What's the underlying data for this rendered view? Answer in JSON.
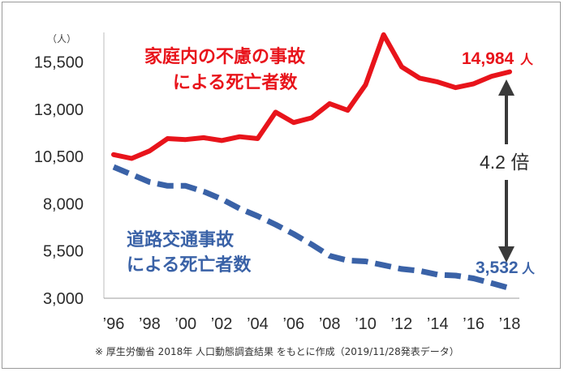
{
  "chart_data": {
    "type": "line",
    "unit_label": "（人）",
    "x": [
      "96",
      "97",
      "98",
      "99",
      "00",
      "01",
      "02",
      "03",
      "04",
      "05",
      "06",
      "07",
      "08",
      "09",
      "10",
      "11",
      "12",
      "13",
      "14",
      "15",
      "16",
      "17",
      "18"
    ],
    "x_tick_labels": [
      "’96",
      "’98",
      "’00",
      "’02",
      "’04",
      "’06",
      "’08",
      "’10",
      "’12",
      "’14",
      "’16",
      "’18"
    ],
    "y_ticks": [
      "3,000",
      "5,500",
      "8,000",
      "10,500",
      "13,000",
      "15,500"
    ],
    "ylim": [
      3000,
      17500
    ],
    "grid": false,
    "series": [
      {
        "name": "家庭内の不慮の事故による死亡者数",
        "color": "#e8141b",
        "dash": false,
        "values": [
          10600,
          10400,
          10800,
          11450,
          11400,
          11500,
          11350,
          11550,
          11450,
          12850,
          12300,
          12550,
          13300,
          12950,
          14300,
          16950,
          15250,
          14650,
          14450,
          14150,
          14350,
          14750,
          14984
        ]
      },
      {
        "name": "道路交通事故による死亡者数",
        "color": "#3a62a7",
        "dash": true,
        "values": [
          9950,
          9550,
          9150,
          8950,
          8950,
          8650,
          8250,
          7750,
          7350,
          6900,
          6400,
          5850,
          5250,
          5000,
          4950,
          4750,
          4550,
          4450,
          4250,
          4200,
          4050,
          3800,
          3532
        ]
      }
    ],
    "labels": {
      "red_line1": "家庭内の不慮の事故",
      "red_line2": "による死亡者数",
      "blue_line1": "道路交通事故",
      "blue_line2": "による死亡者数",
      "red_end_value": "14,984",
      "red_end_unit": "人",
      "blue_end_value": "3,532",
      "blue_end_unit": "人",
      "ratio": "4.2 倍"
    },
    "footnote": "※ 厚生労働省 2018年 人口動態調査結果 をもとに作成（2019/11/28発表データ）"
  }
}
